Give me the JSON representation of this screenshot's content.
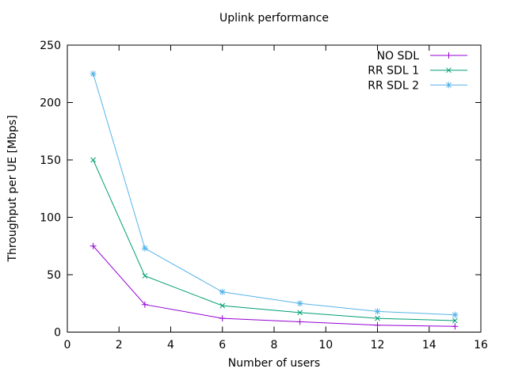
{
  "chart_data": {
    "type": "line",
    "title": "Uplink performance",
    "xlabel": "Number of users",
    "ylabel": "Throughput per UE [Mbps]",
    "x": [
      1,
      3,
      6,
      9,
      12,
      15
    ],
    "series": [
      {
        "name": "NO SDL",
        "color": "#9400d3",
        "marker": "plus",
        "values": [
          75,
          24,
          12,
          9,
          6,
          5
        ]
      },
      {
        "name": "RR SDL 1",
        "color": "#009e73",
        "marker": "cross",
        "values": [
          150,
          49,
          23,
          17,
          12,
          10
        ]
      },
      {
        "name": "RR SDL 2",
        "color": "#56b4e9",
        "marker": "asterisk",
        "values": [
          225,
          73,
          35,
          25,
          18,
          15
        ]
      }
    ],
    "xlim": [
      0,
      16
    ],
    "ylim": [
      0,
      250
    ],
    "xticks": [
      0,
      2,
      4,
      6,
      8,
      10,
      12,
      14,
      16
    ],
    "yticks": [
      0,
      50,
      100,
      150,
      200,
      250
    ],
    "legend_position": "top-right",
    "grid": false,
    "axis_color": "#000000",
    "background": "#ffffff"
  }
}
